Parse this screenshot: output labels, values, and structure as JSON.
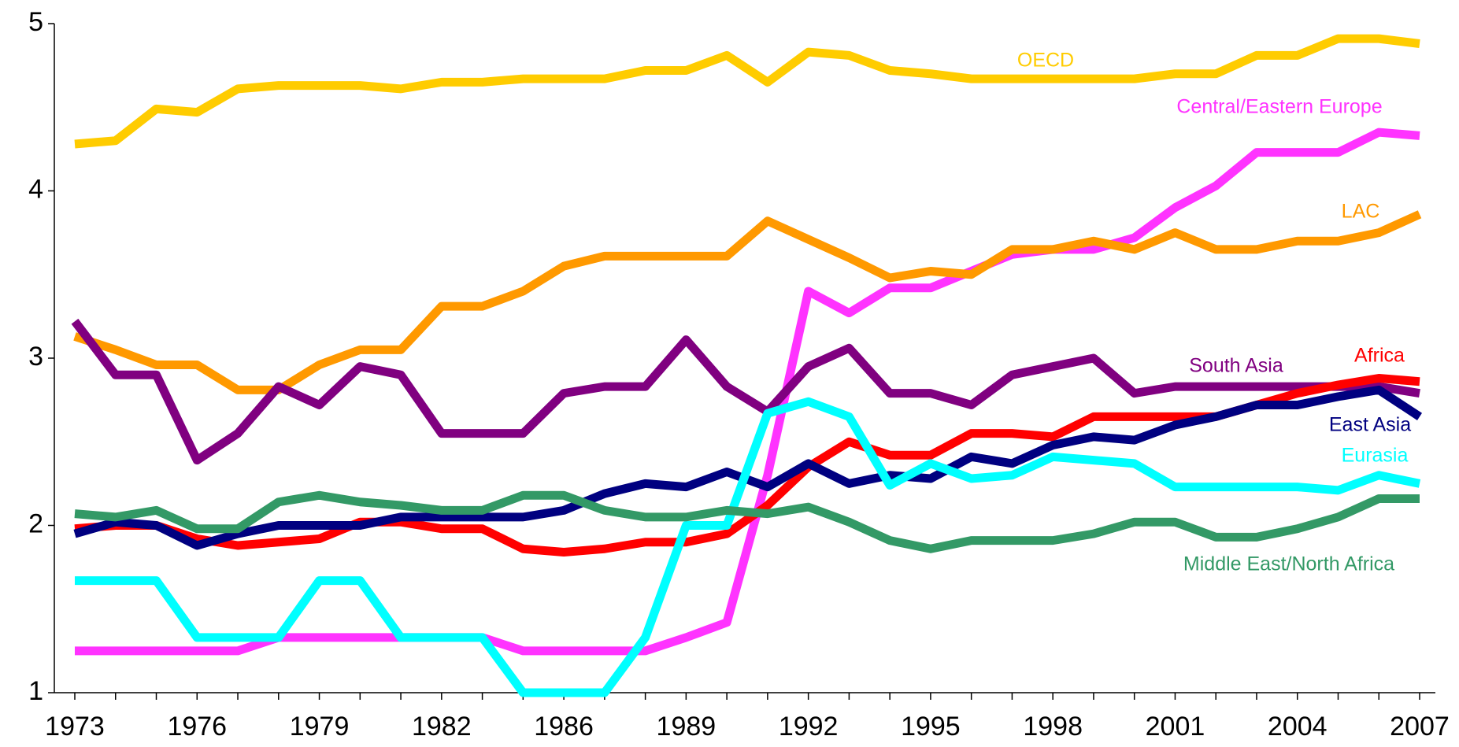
{
  "chart_data": {
    "type": "line",
    "categories": [
      "1973",
      null,
      null,
      "1976",
      null,
      null,
      "1979",
      null,
      null,
      "1982",
      null,
      null,
      "1986",
      null,
      null,
      "1989",
      null,
      null,
      "1992",
      null,
      null,
      "1995",
      null,
      null,
      "1998",
      null,
      null,
      "2001",
      null,
      null,
      "2004",
      null,
      null,
      "2007"
    ],
    "ylim": [
      1,
      5
    ],
    "yticks": [
      1,
      2,
      3,
      4,
      5
    ],
    "grid": false,
    "series": [
      {
        "name": "OECD",
        "color": "#ffcc00",
        "values": [
          4.28,
          4.3,
          4.49,
          4.47,
          4.61,
          4.63,
          4.63,
          4.63,
          4.61,
          4.65,
          4.65,
          4.67,
          4.67,
          4.67,
          4.72,
          4.72,
          4.81,
          4.65,
          4.83,
          4.81,
          4.72,
          4.7,
          4.67,
          4.67,
          4.67,
          4.67,
          4.67,
          4.7,
          4.7,
          4.81,
          4.81,
          4.91,
          4.91,
          4.88
        ]
      },
      {
        "name": "Central/Eastern Europe",
        "color": "#ff33ff",
        "values": [
          1.25,
          1.25,
          1.25,
          1.25,
          1.25,
          1.33,
          1.33,
          1.33,
          1.33,
          1.33,
          1.33,
          1.25,
          1.25,
          1.25,
          1.25,
          1.33,
          1.42,
          2.3,
          3.4,
          3.27,
          3.42,
          3.42,
          3.52,
          3.62,
          3.65,
          3.65,
          3.72,
          3.9,
          4.03,
          4.23,
          4.23,
          4.23,
          4.35,
          4.33
        ]
      },
      {
        "name": "LAC",
        "color": "#ff9900",
        "values": [
          3.13,
          3.05,
          2.96,
          2.96,
          2.81,
          2.81,
          2.96,
          3.05,
          3.05,
          3.31,
          3.31,
          3.4,
          3.55,
          3.61,
          3.61,
          3.61,
          3.61,
          3.82,
          3.71,
          3.6,
          3.48,
          3.52,
          3.5,
          3.65,
          3.65,
          3.7,
          3.65,
          3.75,
          3.65,
          3.65,
          3.7,
          3.7,
          3.75,
          3.86
        ]
      },
      {
        "name": "South Asia",
        "color": "#800080",
        "values": [
          3.22,
          2.9,
          2.9,
          2.39,
          2.55,
          2.83,
          2.72,
          2.95,
          2.9,
          2.55,
          2.55,
          2.55,
          2.79,
          2.83,
          2.83,
          3.11,
          2.83,
          2.68,
          2.95,
          3.06,
          2.79,
          2.79,
          2.72,
          2.9,
          2.95,
          3.0,
          2.79,
          2.83,
          2.83,
          2.83,
          2.83,
          2.83,
          2.83,
          2.79
        ]
      },
      {
        "name": "Africa",
        "color": "#ff0000",
        "values": [
          1.98,
          2.0,
          2.0,
          1.92,
          1.88,
          1.9,
          1.92,
          2.02,
          2.02,
          1.98,
          1.98,
          1.86,
          1.84,
          1.86,
          1.9,
          1.9,
          1.95,
          2.12,
          2.35,
          2.5,
          2.42,
          2.42,
          2.55,
          2.55,
          2.53,
          2.65,
          2.65,
          2.65,
          2.65,
          2.72,
          2.79,
          2.84,
          2.88,
          2.86
        ]
      },
      {
        "name": "East Asia",
        "color": "#000080",
        "values": [
          1.95,
          2.02,
          2.0,
          1.88,
          1.95,
          2.0,
          2.0,
          2.0,
          2.05,
          2.05,
          2.05,
          2.05,
          2.09,
          2.19,
          2.25,
          2.23,
          2.32,
          2.23,
          2.37,
          2.25,
          2.3,
          2.28,
          2.41,
          2.37,
          2.48,
          2.53,
          2.51,
          2.6,
          2.65,
          2.72,
          2.72,
          2.77,
          2.81,
          2.65
        ]
      },
      {
        "name": "Eurasia",
        "color": "#00ffff",
        "values": [
          1.67,
          1.67,
          1.67,
          1.33,
          1.33,
          1.33,
          1.67,
          1.67,
          1.33,
          1.33,
          1.33,
          1.0,
          1.0,
          1.0,
          1.33,
          2.0,
          2.0,
          2.67,
          2.74,
          2.65,
          2.24,
          2.37,
          2.28,
          2.3,
          2.41,
          2.39,
          2.37,
          2.23,
          2.23,
          2.23,
          2.23,
          2.21,
          2.3,
          2.25
        ]
      },
      {
        "name": "Middle East/North Africa",
        "color": "#339966",
        "values": [
          2.07,
          2.05,
          2.09,
          1.98,
          1.98,
          2.14,
          2.18,
          2.14,
          2.12,
          2.09,
          2.09,
          2.18,
          2.18,
          2.09,
          2.05,
          2.05,
          2.09,
          2.07,
          2.11,
          2.02,
          1.91,
          1.86,
          1.91,
          1.91,
          1.91,
          1.95,
          2.02,
          2.02,
          1.93,
          1.93,
          1.98,
          2.05,
          2.16,
          2.16
        ]
      }
    ]
  }
}
